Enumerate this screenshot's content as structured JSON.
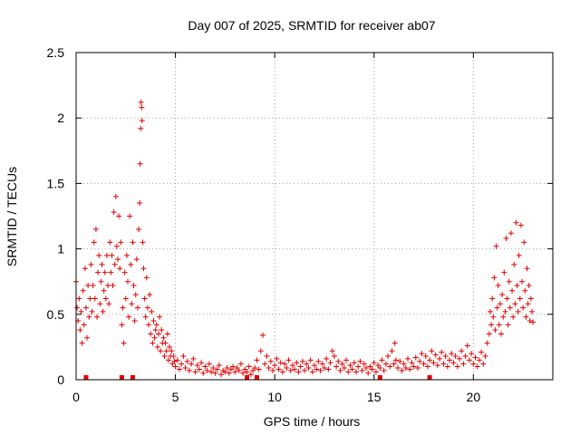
{
  "chart_data": {
    "type": "scatter",
    "title": "Day 007 of 2025, SRMTID for receiver ab07",
    "xlabel": "GPS time / hours",
    "ylabel": "SRMTID / TECUs",
    "xlim": [
      0,
      24
    ],
    "ylim": [
      0,
      2.5
    ],
    "xticks": [
      0,
      5,
      10,
      15,
      20
    ],
    "yticks": [
      0,
      0.5,
      1,
      1.5,
      2,
      2.5
    ],
    "xtick_labels": [
      "0",
      "5",
      "10",
      "15",
      "20"
    ],
    "ytick_labels": [
      "0",
      "0.5",
      "1",
      "1.5",
      "2",
      "2.5"
    ],
    "grid": true,
    "marker": "plus",
    "series": [
      {
        "name": "SRMTID",
        "color": "#e00000",
        "points": [
          [
            0.0,
            0.75
          ],
          [
            0.05,
            0.55
          ],
          [
            0.1,
            0.45
          ],
          [
            0.15,
            0.62
          ],
          [
            0.2,
            0.38
          ],
          [
            0.25,
            0.52
          ],
          [
            0.3,
            0.28
          ],
          [
            0.35,
            0.68
          ],
          [
            0.4,
            0.42
          ],
          [
            0.45,
            0.85
          ],
          [
            0.5,
            0.55
          ],
          [
            0.55,
            0.32
          ],
          [
            0.6,
            0.72
          ],
          [
            0.65,
            0.48
          ],
          [
            0.7,
            0.62
          ],
          [
            0.75,
            0.88
          ],
          [
            0.8,
            0.52
          ],
          [
            0.85,
            0.72
          ],
          [
            0.9,
            1.05
          ],
          [
            0.95,
            0.62
          ],
          [
            1.0,
            1.15
          ],
          [
            1.05,
            0.48
          ],
          [
            1.1,
            0.82
          ],
          [
            1.15,
            0.95
          ],
          [
            1.2,
            0.58
          ],
          [
            1.25,
            0.75
          ],
          [
            1.3,
            0.88
          ],
          [
            1.35,
            0.52
          ],
          [
            1.4,
            0.68
          ],
          [
            1.45,
            0.82
          ],
          [
            1.5,
            0.62
          ],
          [
            1.55,
            0.95
          ],
          [
            1.6,
            0.72
          ],
          [
            1.65,
            0.58
          ],
          [
            1.7,
            1.05
          ],
          [
            1.75,
            0.82
          ],
          [
            1.8,
            0.95
          ],
          [
            1.85,
            0.72
          ],
          [
            1.9,
            1.28
          ],
          [
            1.95,
            0.88
          ],
          [
            2.0,
            1.4
          ],
          [
            2.05,
            1.02
          ],
          [
            2.1,
            0.92
          ],
          [
            2.15,
            1.25
          ],
          [
            2.2,
            0.85
          ],
          [
            2.25,
            1.05
          ],
          [
            2.3,
            0.42
          ],
          [
            2.35,
            0.55
          ],
          [
            2.4,
            0.28
          ],
          [
            2.45,
            0.82
          ],
          [
            2.5,
            0.62
          ],
          [
            2.55,
            0.95
          ],
          [
            2.6,
            0.75
          ],
          [
            2.65,
            0.48
          ],
          [
            2.7,
            1.25
          ],
          [
            2.75,
            0.88
          ],
          [
            2.8,
            0.58
          ],
          [
            2.85,
            1.05
          ],
          [
            2.9,
            0.72
          ],
          [
            2.95,
            0.45
          ],
          [
            3.0,
            0.65
          ],
          [
            3.05,
            0.92
          ],
          [
            3.1,
            0.55
          ],
          [
            3.15,
            1.15
          ],
          [
            3.2,
            1.35
          ],
          [
            3.22,
            1.65
          ],
          [
            3.25,
            1.92
          ],
          [
            3.27,
            2.12
          ],
          [
            3.3,
            2.08
          ],
          [
            3.32,
            1.98
          ],
          [
            3.35,
            1.05
          ],
          [
            3.4,
            0.85
          ],
          [
            3.45,
            0.62
          ],
          [
            3.5,
            0.48
          ],
          [
            3.55,
            0.78
          ],
          [
            3.6,
            0.55
          ],
          [
            3.65,
            0.42
          ],
          [
            3.7,
            0.65
          ],
          [
            3.75,
            0.35
          ],
          [
            3.8,
            0.52
          ],
          [
            3.85,
            0.28
          ],
          [
            3.9,
            0.45
          ],
          [
            3.95,
            0.32
          ],
          [
            4.0,
            0.38
          ],
          [
            4.05,
            0.42
          ],
          [
            4.1,
            0.25
          ],
          [
            4.15,
            0.35
          ],
          [
            4.2,
            0.48
          ],
          [
            4.25,
            0.22
          ],
          [
            4.3,
            0.38
          ],
          [
            4.35,
            0.28
          ],
          [
            4.4,
            0.32
          ],
          [
            4.45,
            0.18
          ],
          [
            4.5,
            0.28
          ],
          [
            4.55,
            0.22
          ],
          [
            4.6,
            0.35
          ],
          [
            4.65,
            0.15
          ],
          [
            4.7,
            0.25
          ],
          [
            4.75,
            0.18
          ],
          [
            4.8,
            0.22
          ],
          [
            4.85,
            0.12
          ],
          [
            4.9,
            0.18
          ],
          [
            4.95,
            0.14
          ],
          [
            5.0,
            0.1
          ],
          [
            5.1,
            0.15
          ],
          [
            5.2,
            0.08
          ],
          [
            5.3,
            0.12
          ],
          [
            5.4,
            0.18
          ],
          [
            5.5,
            0.09
          ],
          [
            5.6,
            0.14
          ],
          [
            5.7,
            0.07
          ],
          [
            5.8,
            0.12
          ],
          [
            5.9,
            0.16
          ],
          [
            6.0,
            0.06
          ],
          [
            6.1,
            0.11
          ],
          [
            6.2,
            0.08
          ],
          [
            6.3,
            0.13
          ],
          [
            6.4,
            0.05
          ],
          [
            6.5,
            0.1
          ],
          [
            6.6,
            0.07
          ],
          [
            6.7,
            0.12
          ],
          [
            6.8,
            0.06
          ],
          [
            6.9,
            0.09
          ],
          [
            7.0,
            0.05
          ],
          [
            7.1,
            0.08
          ],
          [
            7.2,
            0.11
          ],
          [
            7.3,
            0.04
          ],
          [
            7.4,
            0.07
          ],
          [
            7.5,
            0.06
          ],
          [
            7.6,
            0.09
          ],
          [
            7.7,
            0.05
          ],
          [
            7.8,
            0.08
          ],
          [
            7.9,
            0.1
          ],
          [
            8.0,
            0.06
          ],
          [
            8.1,
            0.09
          ],
          [
            8.2,
            0.07
          ],
          [
            8.3,
            0.12
          ],
          [
            8.4,
            0.05
          ],
          [
            8.5,
            0.08
          ],
          [
            8.6,
            0.06
          ],
          [
            8.7,
            0.1
          ],
          [
            8.8,
            0.04
          ],
          [
            8.9,
            0.07
          ],
          [
            9.0,
            0.09
          ],
          [
            9.1,
            0.15
          ],
          [
            9.2,
            0.08
          ],
          [
            9.3,
            0.22
          ],
          [
            9.4,
            0.34
          ],
          [
            9.5,
            0.12
          ],
          [
            9.6,
            0.18
          ],
          [
            9.7,
            0.09
          ],
          [
            9.8,
            0.14
          ],
          [
            9.9,
            0.07
          ],
          [
            10.0,
            0.11
          ],
          [
            10.1,
            0.16
          ],
          [
            10.2,
            0.08
          ],
          [
            10.3,
            0.13
          ],
          [
            10.4,
            0.06
          ],
          [
            10.5,
            0.12
          ],
          [
            10.6,
            0.09
          ],
          [
            10.7,
            0.15
          ],
          [
            10.8,
            0.07
          ],
          [
            10.9,
            0.11
          ],
          [
            11.0,
            0.08
          ],
          [
            11.1,
            0.13
          ],
          [
            11.2,
            0.06
          ],
          [
            11.3,
            0.1
          ],
          [
            11.4,
            0.14
          ],
          [
            11.5,
            0.07
          ],
          [
            11.6,
            0.12
          ],
          [
            11.7,
            0.09
          ],
          [
            11.8,
            0.15
          ],
          [
            11.9,
            0.06
          ],
          [
            12.0,
            0.11
          ],
          [
            12.1,
            0.08
          ],
          [
            12.2,
            0.14
          ],
          [
            12.3,
            0.07
          ],
          [
            12.4,
            0.12
          ],
          [
            12.5,
            0.09
          ],
          [
            12.6,
            0.16
          ],
          [
            12.7,
            0.08
          ],
          [
            12.8,
            0.13
          ],
          [
            12.9,
            0.22
          ],
          [
            13.0,
            0.18
          ],
          [
            13.1,
            0.1
          ],
          [
            13.2,
            0.14
          ],
          [
            13.3,
            0.07
          ],
          [
            13.4,
            0.12
          ],
          [
            13.5,
            0.09
          ],
          [
            13.6,
            0.15
          ],
          [
            13.7,
            0.06
          ],
          [
            13.8,
            0.11
          ],
          [
            13.9,
            0.08
          ],
          [
            14.0,
            0.13
          ],
          [
            14.1,
            0.06
          ],
          [
            14.2,
            0.1
          ],
          [
            14.3,
            0.14
          ],
          [
            14.4,
            0.07
          ],
          [
            14.5,
            0.12
          ],
          [
            14.6,
            0.09
          ],
          [
            14.7,
            0.05
          ],
          [
            14.8,
            0.1
          ],
          [
            14.9,
            0.08
          ],
          [
            15.0,
            0.13
          ],
          [
            15.1,
            0.06
          ],
          [
            15.2,
            0.11
          ],
          [
            15.3,
            0.09
          ],
          [
            15.4,
            0.15
          ],
          [
            15.5,
            0.07
          ],
          [
            15.6,
            0.12
          ],
          [
            15.7,
            0.18
          ],
          [
            15.8,
            0.1
          ],
          [
            15.9,
            0.22
          ],
          [
            16.0,
            0.12
          ],
          [
            16.05,
            0.28
          ],
          [
            16.1,
            0.15
          ],
          [
            16.2,
            0.09
          ],
          [
            16.3,
            0.14
          ],
          [
            16.4,
            0.07
          ],
          [
            16.5,
            0.12
          ],
          [
            16.6,
            0.09
          ],
          [
            16.7,
            0.16
          ],
          [
            16.8,
            0.08
          ],
          [
            16.9,
            0.13
          ],
          [
            17.0,
            0.1
          ],
          [
            17.1,
            0.17
          ],
          [
            17.2,
            0.09
          ],
          [
            17.3,
            0.14
          ],
          [
            17.4,
            0.2
          ],
          [
            17.5,
            0.12
          ],
          [
            17.6,
            0.18
          ],
          [
            17.7,
            0.1
          ],
          [
            17.8,
            0.15
          ],
          [
            17.9,
            0.22
          ],
          [
            18.0,
            0.13
          ],
          [
            18.1,
            0.19
          ],
          [
            18.2,
            0.11
          ],
          [
            18.3,
            0.16
          ],
          [
            18.4,
            0.21
          ],
          [
            18.5,
            0.12
          ],
          [
            18.6,
            0.18
          ],
          [
            18.7,
            0.1
          ],
          [
            18.8,
            0.15
          ],
          [
            18.9,
            0.2
          ],
          [
            19.0,
            0.13
          ],
          [
            19.1,
            0.18
          ],
          [
            19.2,
            0.1
          ],
          [
            19.3,
            0.16
          ],
          [
            19.4,
            0.22
          ],
          [
            19.5,
            0.12
          ],
          [
            19.6,
            0.18
          ],
          [
            19.7,
            0.26
          ],
          [
            19.8,
            0.15
          ],
          [
            19.9,
            0.2
          ],
          [
            20.0,
            0.12
          ],
          [
            20.1,
            0.17
          ],
          [
            20.2,
            0.1
          ],
          [
            20.3,
            0.15
          ],
          [
            20.4,
            0.21
          ],
          [
            20.5,
            0.12
          ],
          [
            20.6,
            0.18
          ],
          [
            20.7,
            0.28
          ],
          [
            20.8,
            0.35
          ],
          [
            20.85,
            0.52
          ],
          [
            20.9,
            0.42
          ],
          [
            20.95,
            0.62
          ],
          [
            21.0,
            0.48
          ],
          [
            21.05,
            0.78
          ],
          [
            21.1,
            0.38
          ],
          [
            21.15,
            1.02
          ],
          [
            21.2,
            0.55
          ],
          [
            21.25,
            0.72
          ],
          [
            21.3,
            0.42
          ],
          [
            21.35,
            0.58
          ],
          [
            21.4,
            0.35
          ],
          [
            21.45,
            0.65
          ],
          [
            21.5,
            0.48
          ],
          [
            21.55,
            0.82
          ],
          [
            21.6,
            0.52
          ],
          [
            21.65,
            1.08
          ],
          [
            21.7,
            0.62
          ],
          [
            21.75,
            0.42
          ],
          [
            21.8,
            0.75
          ],
          [
            21.85,
            0.55
          ],
          [
            21.9,
            1.12
          ],
          [
            21.95,
            0.68
          ],
          [
            22.0,
            0.48
          ],
          [
            22.05,
            0.88
          ],
          [
            22.1,
            0.58
          ],
          [
            22.15,
            1.2
          ],
          [
            22.2,
            0.72
          ],
          [
            22.25,
            0.52
          ],
          [
            22.3,
            0.95
          ],
          [
            22.35,
            0.62
          ],
          [
            22.4,
            1.18
          ],
          [
            22.45,
            0.75
          ],
          [
            22.5,
            0.55
          ],
          [
            22.55,
            1.05
          ],
          [
            22.6,
            0.68
          ],
          [
            22.65,
            0.48
          ],
          [
            22.7,
            0.85
          ],
          [
            22.75,
            0.58
          ],
          [
            22.8,
            0.72
          ],
          [
            22.85,
            0.45
          ],
          [
            22.9,
            0.62
          ],
          [
            22.95,
            0.52
          ],
          [
            23.0,
            0.44
          ]
        ]
      }
    ],
    "bottom_markers": {
      "color": "#e00000",
      "x": [
        0.5,
        2.3,
        2.85,
        8.6,
        9.1,
        15.3,
        17.8
      ]
    }
  }
}
